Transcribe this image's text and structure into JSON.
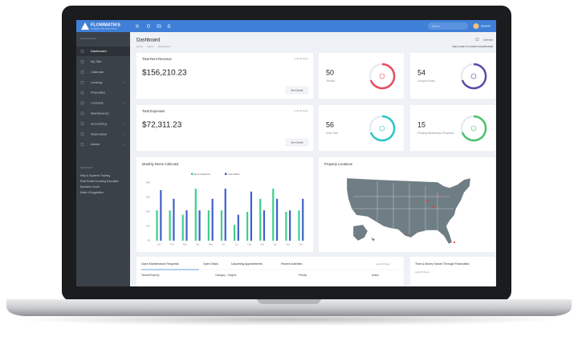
{
  "header": {
    "logo": "FLOWMATIKS",
    "tagline": "SOFTWARE FOR REAL ESTATE INVESTORS",
    "search": "Search",
    "user": "Deanna"
  },
  "sidebar": {
    "nav_title": "NAVIGATION",
    "items": [
      "Dashboard",
      "My Site",
      "Calendar",
      "Leasing",
      "Properties",
      "Contacts",
      "Maintenance",
      "Accounting",
      "Automation",
      "Admin"
    ],
    "support_title": "SUPPORT",
    "support_items": [
      "Help & Systems Training",
      "Real Estate Investing Education",
      "Business Credit",
      "Make A Suggestion"
    ]
  },
  "page": {
    "title": "Dashboard",
    "breadcrumb": [
      "Home",
      "Admin",
      "Dashboard"
    ],
    "calendar": "Calendar",
    "welcome": "WELCOME TO ADMIN DASHBOARD"
  },
  "cards": [
    {
      "title": "Total Rent Revenue",
      "period": "Last 30 Days",
      "value": "$156,210.23",
      "button": "See Details"
    },
    {
      "title": "Total Expenses",
      "period": "Last 30 Days",
      "value": "$72,311.23",
      "button": "See Details"
    }
  ],
  "stats": [
    {
      "value": "50",
      "label": "Tenants"
    },
    {
      "value": "54",
      "label": "Occupied Units"
    },
    {
      "value": "56",
      "label": "Units Total"
    },
    {
      "value": "15",
      "label": "Pending Maintenance Requests"
    }
  ],
  "monthly_rents": {
    "type": "bar",
    "title": "Monthly Rents Collected",
    "categories": [
      "Jan",
      "Feb",
      "Mar",
      "Apr",
      "May",
      "Jun",
      "Jul",
      "Aug",
      "Sep",
      "Oct",
      "Nov",
      "Dec"
    ],
    "series": [
      {
        "name": "Rent Collected",
        "color": "#3ecf8e",
        "values": [
          2100,
          2100,
          1800,
          3600,
          2100,
          2100,
          1100,
          2000,
          2900,
          3600,
          2000,
          2100
        ]
      },
      {
        "name": "Late Rents",
        "color": "#3f5fc8",
        "values": [
          3500,
          2900,
          2100,
          2100,
          2900,
          3600,
          1800,
          3400,
          2100,
          2900,
          2100,
          2900
        ]
      }
    ],
    "ylim": [
      0,
      4000
    ],
    "yticks": [
      {
        "value": 0,
        "label": "$0"
      },
      {
        "value": 1000,
        "label": "$1K"
      },
      {
        "value": 2000,
        "label": "$2K"
      },
      {
        "value": 3000,
        "label": "$3K"
      },
      {
        "value": 4000,
        "label": "$4K"
      }
    ]
  },
  "map": {
    "title": "Property Locations"
  },
  "activity": {
    "tabs": [
      "Open Maintenance Requests",
      "Open Tasks",
      "Upcoming Appointments",
      "Recent Activities"
    ],
    "period": "Last 30 Days",
    "columns": [
      "Tenant/Property",
      "Category - Subject",
      "Priority",
      "Action"
    ]
  },
  "savings": {
    "title": "Time & Money Saved Through Flowmatiks",
    "period": "Last 30 Days"
  }
}
